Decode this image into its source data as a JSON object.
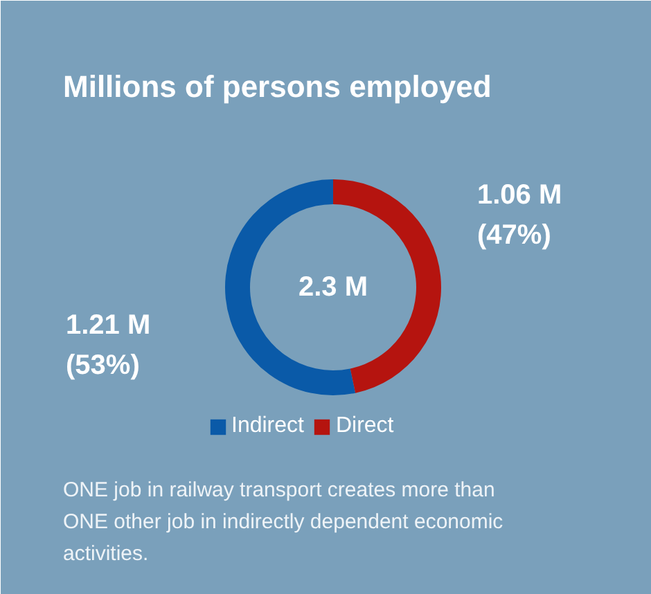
{
  "chart_data": {
    "type": "donut",
    "title": "Millions of persons employed",
    "categories": [
      "Indirect",
      "Direct"
    ],
    "values": [
      1.21,
      1.06
    ],
    "colors": [
      "#0a5aa8",
      "#b5140f"
    ],
    "value_labels": [
      "1.21 M\n(53%)",
      "1.06 M\n(47%)"
    ],
    "legend": "bottom",
    "annotations": [
      "2.3 M",
      "ONE job in railway transport creates more than ONE other job in indirectly dependent economic activities."
    ]
  }
}
